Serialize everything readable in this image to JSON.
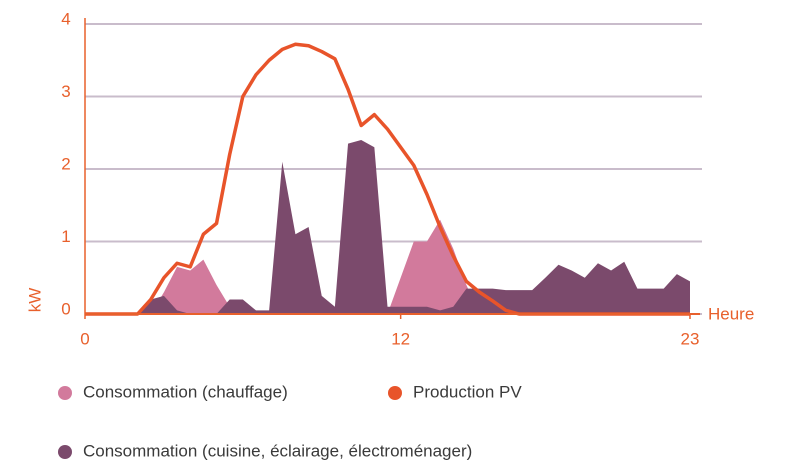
{
  "chart_data": {
    "type": "line",
    "x_label": "Heure",
    "y_label": "kW",
    "x": [
      0,
      0.5,
      1,
      1.5,
      2,
      2.5,
      3,
      3.5,
      4,
      4.5,
      5,
      5.5,
      6,
      6.5,
      7,
      7.5,
      8,
      8.5,
      9,
      9.5,
      10,
      10.5,
      11,
      11.5,
      12,
      12.5,
      13,
      13.5,
      14,
      14.5,
      15,
      15.5,
      16,
      16.5,
      17,
      17.5,
      18,
      18.5,
      19,
      19.5,
      20,
      20.5,
      21,
      21.5,
      22,
      22.5,
      23
    ],
    "series": [
      {
        "name": "Consommation (chauffage)",
        "type": "area",
        "color": "#d27a9c",
        "values": [
          0,
          0,
          0,
          0,
          0,
          0,
          0.3,
          0.65,
          0.6,
          0.75,
          0.4,
          0.1,
          0,
          0,
          0,
          0,
          0,
          0,
          0,
          0,
          0,
          0,
          0,
          0,
          0.5,
          1.0,
          1.0,
          1.3,
          0.9,
          0.4,
          0,
          0,
          0,
          0,
          0,
          0,
          0,
          0,
          0,
          0,
          0,
          0,
          0,
          0,
          0,
          0,
          0
        ]
      },
      {
        "name": "Production PV",
        "type": "line",
        "color": "#e8542a",
        "values": [
          0,
          0,
          0,
          0,
          0,
          0.2,
          0.5,
          0.7,
          0.65,
          1.1,
          1.25,
          2.2,
          3.0,
          3.3,
          3.5,
          3.65,
          3.72,
          3.7,
          3.62,
          3.52,
          3.1,
          2.6,
          2.75,
          2.55,
          2.3,
          2.05,
          1.65,
          1.2,
          0.8,
          0.45,
          0.3,
          0.18,
          0.05,
          0,
          0,
          0,
          0,
          0,
          0,
          0,
          0,
          0,
          0,
          0,
          0,
          0,
          0
        ]
      },
      {
        "name": "Consommation (cuisine, éclairage, électroménager)",
        "type": "area",
        "color": "#7b4a6c",
        "values": [
          0,
          0,
          0,
          0,
          0,
          0.2,
          0.25,
          0.05,
          0,
          0,
          0,
          0.2,
          0.2,
          0.05,
          0.05,
          2.1,
          1.1,
          1.2,
          0.25,
          0.1,
          2.35,
          2.4,
          2.3,
          0.1,
          0.1,
          0.1,
          0.1,
          0.05,
          0.1,
          0.35,
          0.35,
          0.35,
          0.33,
          0.33,
          0.33,
          0.5,
          0.68,
          0.6,
          0.5,
          0.7,
          0.6,
          0.72,
          0.35,
          0.35,
          0.35,
          0.55,
          0.45
        ]
      }
    ],
    "xlim": [
      0,
      23
    ],
    "xticks": [
      0,
      12,
      23
    ],
    "ylim": [
      0,
      4
    ],
    "yticks": [
      0,
      1,
      2,
      3,
      4
    ],
    "grid": true,
    "axis_color": "#e8602c",
    "grid_color": "#c9bccb"
  }
}
